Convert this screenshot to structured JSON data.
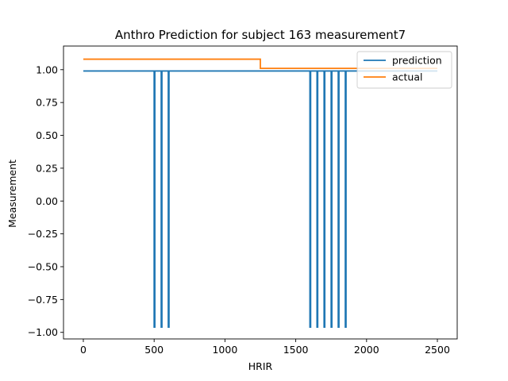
{
  "chart_data": {
    "type": "line",
    "title": "Anthro Prediction for subject 163 measurement7",
    "xlabel": "HRIR",
    "ylabel": "Measurement",
    "xlim": [
      -140,
      2640
    ],
    "ylim": [
      -1.05,
      1.18
    ],
    "xticks": [
      0,
      500,
      1000,
      1500,
      2000,
      2500
    ],
    "xtick_labels": [
      "0",
      "500",
      "1000",
      "1500",
      "2000",
      "2500"
    ],
    "yticks": [
      1.0,
      0.75,
      0.5,
      0.25,
      0.0,
      -0.25,
      -0.5,
      -0.75,
      -1.0
    ],
    "ytick_labels": [
      "1.00",
      "0.75",
      "0.50",
      "0.25",
      "0.00",
      "−0.25",
      "−0.50",
      "−0.75",
      "−1.00"
    ],
    "grid": false,
    "legend_position": "top-right",
    "series": [
      {
        "name": "prediction",
        "color": "#1f77b4",
        "x": [
          0,
          500,
          500,
          505,
          505,
          550,
          550,
          555,
          555,
          600,
          600,
          605,
          605,
          1600,
          1600,
          1605,
          1605,
          1650,
          1650,
          1655,
          1655,
          1700,
          1700,
          1705,
          1705,
          1750,
          1750,
          1755,
          1755,
          1800,
          1800,
          1805,
          1805,
          1850,
          1850,
          1855,
          1855,
          2500
        ],
        "y": [
          0.99,
          0.99,
          -0.96,
          -0.96,
          0.99,
          0.99,
          -0.96,
          -0.96,
          0.99,
          0.99,
          -0.96,
          -0.96,
          0.99,
          0.99,
          -0.96,
          -0.96,
          0.99,
          0.99,
          -0.96,
          -0.96,
          0.99,
          0.99,
          -0.96,
          -0.96,
          0.99,
          0.99,
          -0.96,
          -0.96,
          0.99,
          0.99,
          -0.96,
          -0.96,
          0.99,
          0.99,
          -0.96,
          -0.96,
          0.99,
          0.99
        ]
      },
      {
        "name": "actual",
        "color": "#ff7f0e",
        "x": [
          0,
          1250,
          1250,
          2500
        ],
        "y": [
          1.08,
          1.08,
          1.01,
          1.01
        ]
      }
    ]
  }
}
